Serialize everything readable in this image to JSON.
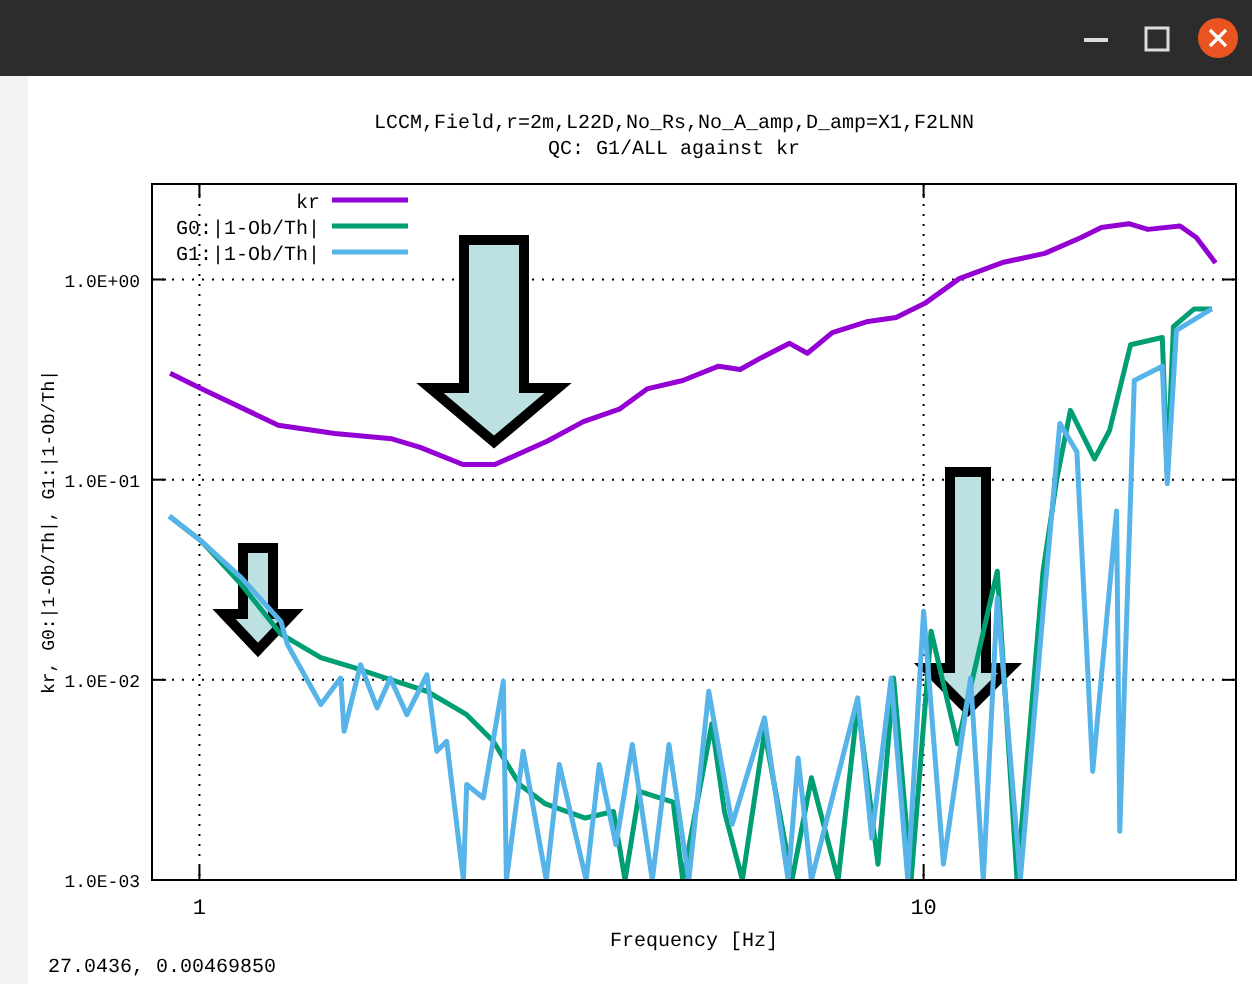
{
  "chart_data": {
    "type": "line",
    "title": "LCCM,Field,r=2m,L22D,No_Rs,No_A_amp,D_amp=X1,F2LNN",
    "subtitle": "QC: G1/ALL against kr",
    "xlabel": "Frequency [Hz]",
    "ylabel": "kr, G0:|1-Ob/Th|, G1:|1-Ob/Th|",
    "log": "xy",
    "grid": true,
    "legend": "top left",
    "line_style": "solid",
    "marker": "none",
    "xlim": [
      0.86,
      27
    ],
    "xticks": [
      1,
      10
    ],
    "ylim": [
      0.001,
      3
    ],
    "yticks": [
      {
        "value": 0.001,
        "label": "1.0E-03"
      },
      {
        "value": 0.01,
        "label": "1.0E-02"
      },
      {
        "value": 0.1,
        "label": "1.0E-01"
      },
      {
        "value": 1,
        "label": "1.0E+00"
      }
    ],
    "annotations": [
      "27.0436, 0.00469850"
    ],
    "series": [
      {
        "name": "kr",
        "color": "#9400d3",
        "x": [
          0.911,
          1.0,
          1.285,
          1.538,
          1.844,
          2.018,
          2.311,
          2.558,
          3.025,
          3.39,
          3.8,
          4.15,
          4.65,
          5.21,
          5.58,
          5.97,
          6.53,
          6.91,
          7.48,
          8.38,
          9.16,
          10.04,
          11.2,
          12.9,
          14.7,
          16.5,
          17.6,
          19.2,
          20.4,
          22.6,
          23.8,
          25.3
        ],
        "values": [
          0.34,
          0.288,
          0.187,
          0.17,
          0.16,
          0.145,
          0.119,
          0.119,
          0.156,
          0.195,
          0.225,
          0.284,
          0.313,
          0.369,
          0.355,
          0.407,
          0.48,
          0.428,
          0.543,
          0.617,
          0.646,
          0.76,
          1.01,
          1.22,
          1.35,
          1.62,
          1.82,
          1.9,
          1.78,
          1.85,
          1.62,
          1.21
        ]
      },
      {
        "name": "G0:|1-Ob/Th|",
        "color": "#009e73",
        "x": [
          0.909,
          1.006,
          1.142,
          1.296,
          1.471,
          1.635,
          1.778,
          2.061,
          2.339,
          2.546,
          2.768,
          3.005,
          3.41,
          3.73,
          3.87,
          4.05,
          4.51,
          4.65,
          5.1,
          5.31,
          5.62,
          6.03,
          6.58,
          7.0,
          7.62,
          8.11,
          8.65,
          9.09,
          9.61,
          10.24,
          11.14,
          12.64,
          13.46,
          14.62,
          15.28,
          15.95,
          17.22,
          18.06,
          19.31,
          21.36,
          21.7,
          22.13,
          23.64,
          25.0
        ],
        "values": [
          0.0656,
          0.0493,
          0.03,
          0.0169,
          0.0129,
          0.0115,
          0.0104,
          0.00877,
          0.0067,
          0.00493,
          0.003,
          0.0024,
          0.00204,
          0.0022,
          0.001,
          0.00277,
          0.00245,
          0.001,
          0.00603,
          0.00219,
          0.001,
          0.0055,
          0.001,
          0.00324,
          0.001,
          0.00759,
          0.0012,
          0.0102,
          0.001,
          0.0175,
          0.00479,
          0.0349,
          0.001,
          0.0349,
          0.102,
          0.222,
          0.127,
          0.176,
          0.472,
          0.513,
          0.107,
          0.581,
          0.713,
          0.713
        ]
      },
      {
        "name": "G1:|1-Ob/Th|",
        "color": "#56b4e9",
        "x": [
          0.909,
          1.006,
          1.142,
          1.296,
          1.323,
          1.471,
          1.567,
          1.584,
          1.669,
          1.759,
          1.835,
          1.934,
          2.061,
          2.127,
          2.195,
          2.315,
          2.339,
          2.466,
          2.628,
          2.654,
          2.799,
          3.013,
          3.14,
          3.42,
          3.565,
          3.76,
          3.96,
          4.22,
          4.45,
          4.74,
          5.05,
          5.44,
          6.03,
          6.5,
          6.71,
          7.0,
          8.11,
          8.48,
          9.02,
          9.51,
          10.0,
          10.65,
          11.61,
          12.09,
          12.64,
          13.6,
          14.62,
          15.42,
          16.28,
          17.12,
          18.47,
          18.66,
          19.54,
          21.36,
          21.7,
          22.34,
          25.0
        ],
        "values": [
          0.0656,
          0.0493,
          0.0324,
          0.0195,
          0.015,
          0.00753,
          0.0102,
          0.00553,
          0.0119,
          0.00724,
          0.0102,
          0.0067,
          0.0106,
          0.0044,
          0.00493,
          0.001,
          0.003,
          0.00257,
          0.00984,
          0.001,
          0.0044,
          0.001,
          0.00378,
          0.001,
          0.00378,
          0.0015,
          0.00475,
          0.001,
          0.00475,
          0.001,
          0.00877,
          0.0019,
          0.00646,
          0.001,
          0.00407,
          0.001,
          0.00813,
          0.00162,
          0.0102,
          0.001,
          0.022,
          0.0012,
          0.0102,
          0.001,
          0.0257,
          0.001,
          0.022,
          0.191,
          0.138,
          0.00349,
          0.0697,
          0.00175,
          0.313,
          0.369,
          0.0955,
          0.557,
          0.713
        ]
      }
    ]
  }
}
